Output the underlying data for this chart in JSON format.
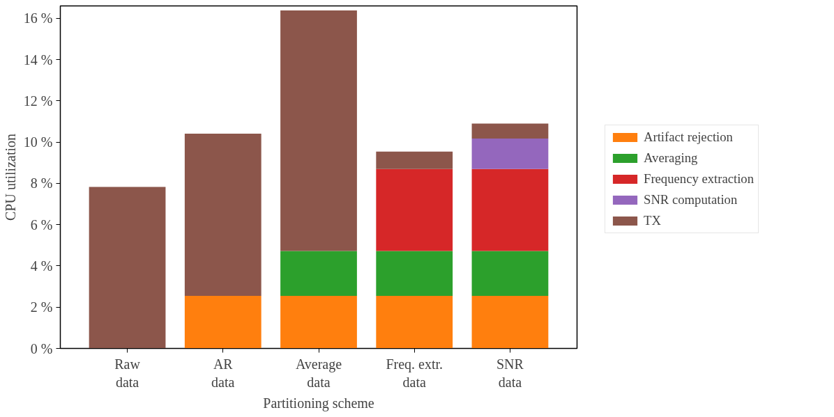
{
  "chart_data": {
    "type": "bar",
    "stacked": true,
    "xlabel": "Partitioning scheme",
    "ylabel": "CPU utilization",
    "categories": [
      "Raw\ndata",
      "AR\ndata",
      "Average\ndata",
      "Freq. extr.\ndata",
      "SNR\ndata"
    ],
    "series": [
      {
        "name": "Artifact rejection",
        "color": "#ff7f0e",
        "values": [
          null,
          2.55,
          2.55,
          2.55,
          2.55
        ]
      },
      {
        "name": "Averaging",
        "color": "#2ca02c",
        "values": [
          null,
          null,
          2.17,
          2.17,
          2.17
        ]
      },
      {
        "name": "Frequency extraction",
        "color": "#d62728",
        "values": [
          null,
          null,
          null,
          3.98,
          3.98
        ]
      },
      {
        "name": "SNR computation",
        "color": "#9467bd",
        "values": [
          null,
          null,
          null,
          null,
          1.47
        ]
      },
      {
        "name": "TX",
        "color": "#8c564b",
        "values": [
          7.83,
          7.86,
          11.66,
          0.84,
          0.73
        ]
      }
    ],
    "ylim": [
      0,
      16.6
    ],
    "yticks": [
      {
        "value": 0,
        "label": "0 %"
      },
      {
        "value": 2,
        "label": "2 %"
      },
      {
        "value": 4,
        "label": "4 %"
      },
      {
        "value": 6,
        "label": "6 %"
      },
      {
        "value": 8,
        "label": "8 %"
      },
      {
        "value": 10,
        "label": "10 %"
      },
      {
        "value": 12,
        "label": "12 %"
      },
      {
        "value": 14,
        "label": "14 %"
      },
      {
        "value": 16,
        "label": "16 %"
      }
    ],
    "grid": false,
    "legend": "right"
  }
}
